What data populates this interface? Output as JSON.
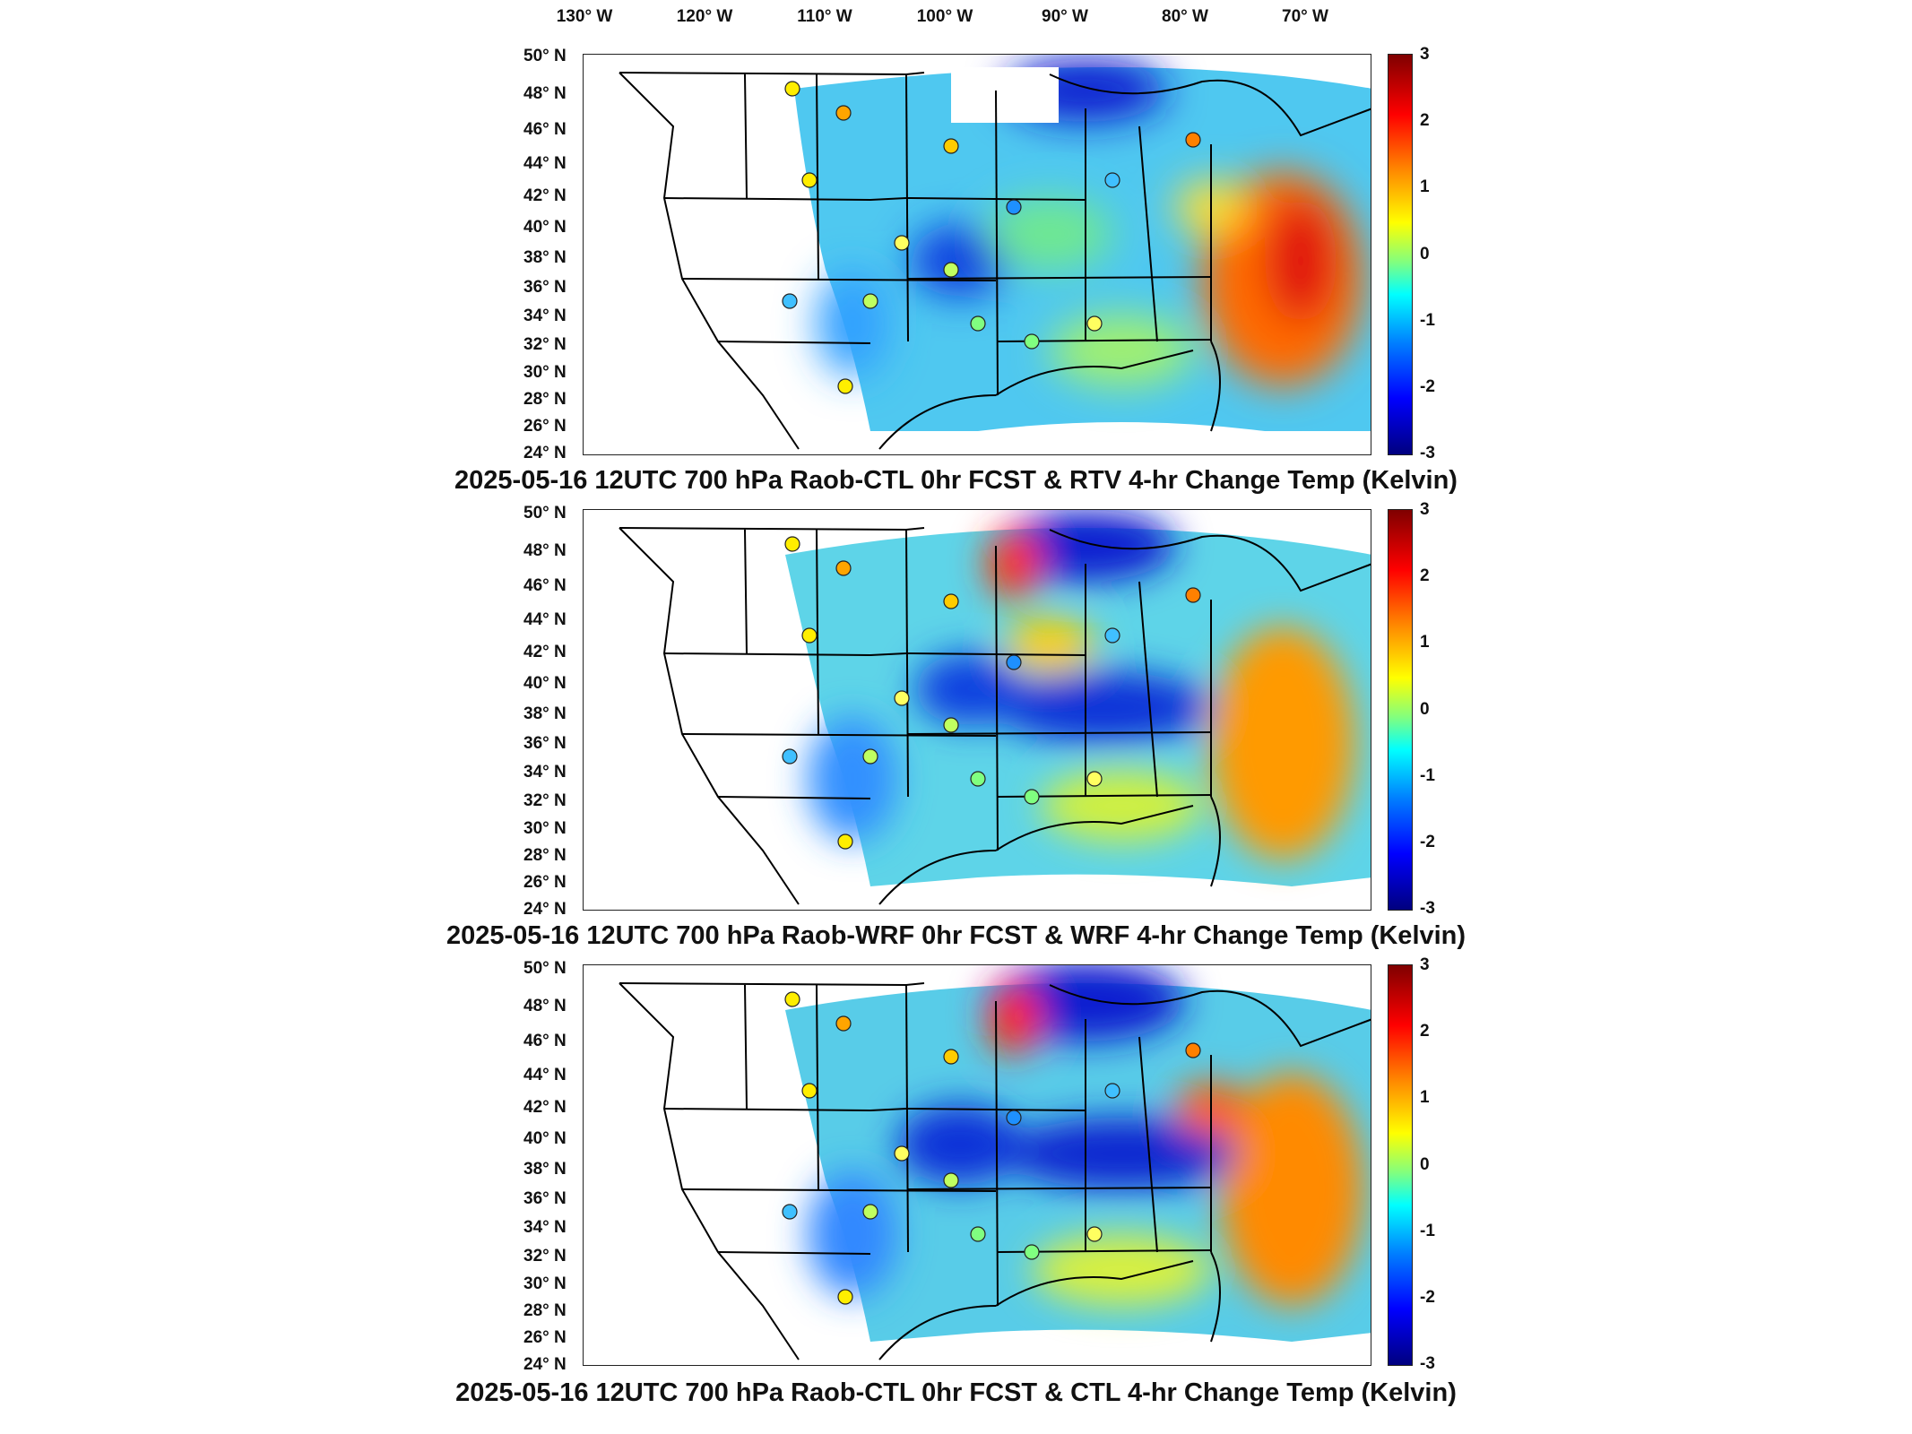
{
  "longitude_labels": [
    "130° W",
    "120° W",
    "110° W",
    "100° W",
    "90° W",
    "80° W",
    "70° W"
  ],
  "latitude_labels": [
    "50° N",
    "48° N",
    "46° N",
    "44° N",
    "42° N",
    "40° N",
    "38° N",
    "36° N",
    "34° N",
    "32° N",
    "30° N",
    "28° N",
    "26° N",
    "24° N"
  ],
  "colorbar_ticks": [
    "3",
    "2",
    "1",
    "0",
    "-1",
    "-2",
    "-3"
  ],
  "colors": {
    "scale": [
      "#00007f",
      "#0000ff",
      "#0080ff",
      "#00ffff",
      "#80ff80",
      "#ffff00",
      "#ff8000",
      "#ff0000",
      "#7f0000"
    ],
    "border": "#000000"
  },
  "panels": [
    {
      "title": "2025-05-16 12UTC 700 hPa Raob-CTL 0hr FCST & RTV 4-hr Change Temp (Kelvin)"
    },
    {
      "title": "2025-05-16 12UTC 700 hPa Raob-WRF 0hr FCST & WRF 4-hr Change Temp (Kelvin)"
    },
    {
      "title": "2025-05-16 12UTC 700 hPa Raob-CTL 0hr FCST & CTL 4-hr Change Temp (Kelvin)"
    }
  ]
}
